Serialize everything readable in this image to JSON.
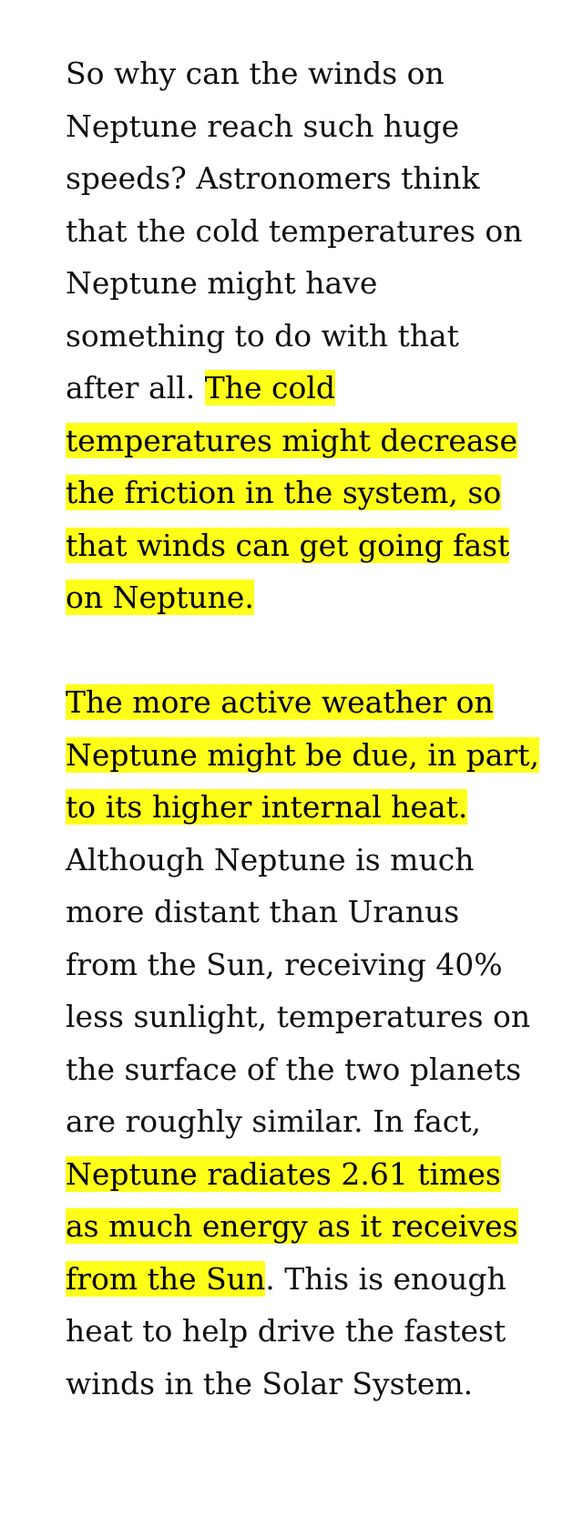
{
  "highlight_color": "#ffff1a",
  "paragraphs": [
    {
      "plain_1": "So why can the winds on Neptune reach such huge speeds? Astronomers think that the cold temperatures on Neptune might have something to do with that after all.",
      "highlight_1": "The cold temperatures might decrease the friction in the system, so that winds can get going fast on Neptune."
    },
    {
      "highlight_1": "The more active weather on Neptune might be due, in part, to its higher internal heat.",
      "plain_1": "Although Neptune is much more distant than Uranus from the Sun, receiving 40% less sunlight, temperatures on the surface of the two planets are roughly similar. In fact,",
      "highlight_2": "Neptune radiates 2.61 times as much energy as it receives from the Sun",
      "plain_2": ". This is enough heat to help drive the fastest winds in the Solar System."
    }
  ]
}
